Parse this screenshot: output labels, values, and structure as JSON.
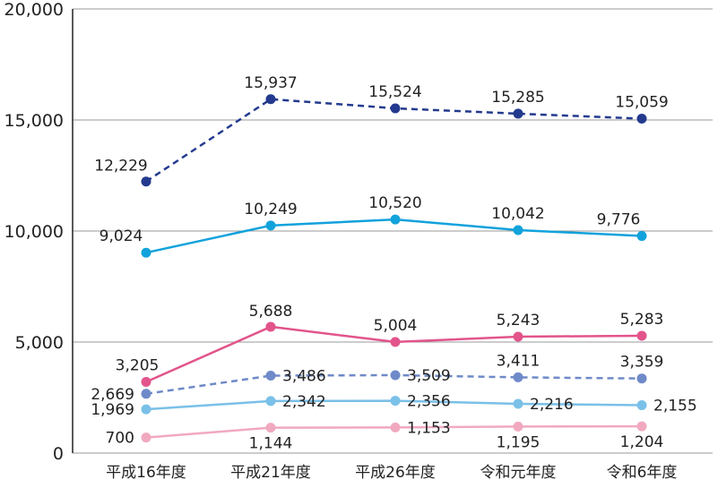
{
  "chart_data": {
    "type": "line",
    "categories": [
      "平成16年度",
      "平成21年度",
      "平成26年度",
      "令和元年度",
      "令和6年度"
    ],
    "ylim": [
      0,
      20000
    ],
    "yticks": [
      0,
      5000,
      10000,
      15000,
      20000
    ],
    "ytick_labels": [
      "0",
      "5,000",
      "10,000",
      "15,000",
      "20,000"
    ],
    "grid": true,
    "series": [
      {
        "values": [
          12229,
          15937,
          15524,
          15285,
          15059
        ],
        "labels": [
          "12,229",
          "15,937",
          "15,524",
          "15,285",
          "15,059"
        ],
        "color": "#233a8e",
        "dashed": true
      },
      {
        "values": [
          9024,
          10249,
          10520,
          10042,
          9776
        ],
        "labels": [
          "9,024",
          "10,249",
          "10,520",
          "10,042",
          "9,776"
        ],
        "color": "#12a2dc",
        "dashed": false
      },
      {
        "values": [
          3205,
          5688,
          5004,
          5243,
          5283
        ],
        "labels": [
          "3,205",
          "5,688",
          "5,004",
          "5,243",
          "5,283"
        ],
        "color": "#e2548b",
        "dashed": false
      },
      {
        "values": [
          2669,
          3486,
          3509,
          3411,
          3359
        ],
        "labels": [
          "2,669",
          "3,486",
          "3,509",
          "3,411",
          "3,359"
        ],
        "color": "#6f8ac9",
        "dashed": true
      },
      {
        "values": [
          1969,
          2342,
          2356,
          2216,
          2155
        ],
        "labels": [
          "1,969",
          "2,342",
          "2,356",
          "2,216",
          "2,155"
        ],
        "color": "#7ac0e8",
        "dashed": false
      },
      {
        "values": [
          700,
          1144,
          1153,
          1195,
          1204
        ],
        "labels": [
          "700",
          "1,144",
          "1,153",
          "1,195",
          "1,204"
        ],
        "color": "#f1a9c0",
        "dashed": false
      }
    ]
  }
}
